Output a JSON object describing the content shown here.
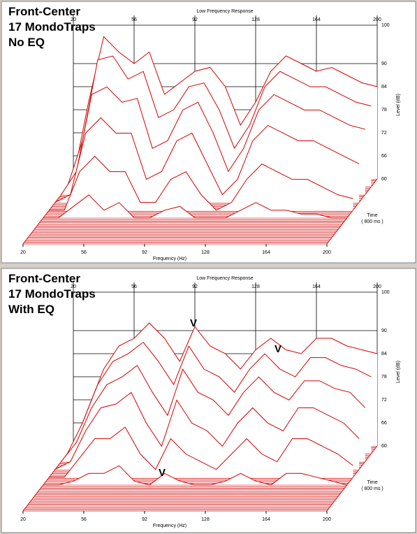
{
  "chart_data": [
    {
      "type": "waterfall",
      "title": [
        "Front-Center",
        "17 MondoTraps",
        "No EQ"
      ],
      "top_title": "Low Frequency Response",
      "xlabel": "Frequency (Hz)",
      "ylabel": "Level (dB)",
      "zlabel": [
        "Time",
        "( 800 ms )"
      ],
      "color": "#d40000",
      "x": [
        20,
        29,
        38,
        47,
        56,
        65,
        74,
        83,
        92,
        101,
        110,
        119,
        128,
        137,
        146,
        155,
        164,
        173,
        182,
        191,
        200
      ],
      "xlim": [
        20,
        200
      ],
      "xticks": [
        20,
        56,
        92,
        128,
        164,
        200
      ],
      "ylim": [
        60,
        100
      ],
      "yticks": [
        100,
        90,
        84,
        78,
        72,
        66,
        60
      ],
      "series": [
        {
          "values": [
            60,
            80,
            97,
            93,
            90,
            93,
            82,
            85,
            88,
            89,
            84,
            74,
            80,
            88,
            92,
            90,
            88,
            89,
            87,
            85,
            84
          ]
        },
        {
          "values": [
            60,
            72,
            93,
            94,
            88,
            90,
            78,
            80,
            86,
            87,
            80,
            70,
            76,
            86,
            90,
            88,
            86,
            86,
            84,
            82,
            81
          ]
        },
        {
          "values": [
            60,
            66,
            86,
            88,
            84,
            85,
            72,
            74,
            82,
            84,
            76,
            66,
            72,
            82,
            86,
            84,
            82,
            82,
            80,
            78,
            77
          ]
        },
        {
          "values": [
            60,
            62,
            78,
            82,
            78,
            78,
            66,
            68,
            76,
            78,
            70,
            62,
            66,
            76,
            80,
            78,
            76,
            76,
            74,
            72,
            70
          ]
        },
        {
          "values": [
            60,
            60,
            70,
            74,
            70,
            70,
            62,
            62,
            68,
            70,
            64,
            60,
            62,
            68,
            72,
            70,
            68,
            68,
            66,
            64,
            63
          ]
        },
        {
          "values": [
            60,
            60,
            63,
            66,
            62,
            64,
            60,
            60,
            62,
            63,
            60,
            60,
            60,
            62,
            64,
            62,
            62,
            61,
            61,
            60,
            60
          ]
        }
      ]
    },
    {
      "type": "waterfall",
      "title": [
        "Front-Center",
        "17 MondoTraps",
        "With EQ"
      ],
      "top_title": "Low Frequency Response",
      "xlabel": "Frequency (Hz)",
      "ylabel": "Level (dB)",
      "zlabel": [
        "Time",
        "( 800 ms )"
      ],
      "color": "#d40000",
      "annotations": [
        "V",
        "V",
        "V"
      ],
      "x": [
        20,
        29,
        38,
        47,
        56,
        65,
        74,
        83,
        92,
        101,
        110,
        119,
        128,
        137,
        146,
        155,
        164,
        173,
        182,
        191,
        200
      ],
      "xlim": [
        20,
        200
      ],
      "xticks": [
        20,
        56,
        92,
        128,
        164,
        200
      ],
      "ylim": [
        60,
        100
      ],
      "yticks": [
        100,
        90,
        84,
        78,
        72,
        66,
        60
      ],
      "series": [
        {
          "values": [
            60,
            70,
            80,
            86,
            88,
            92,
            88,
            82,
            91,
            86,
            84,
            80,
            85,
            88,
            85,
            84,
            88,
            88,
            86,
            85,
            84
          ]
        },
        {
          "values": [
            60,
            68,
            78,
            84,
            86,
            89,
            84,
            78,
            88,
            82,
            80,
            76,
            82,
            86,
            82,
            80,
            85,
            85,
            83,
            82,
            80
          ]
        },
        {
          "values": [
            60,
            65,
            74,
            80,
            82,
            85,
            78,
            72,
            84,
            78,
            76,
            72,
            78,
            82,
            78,
            76,
            81,
            81,
            79,
            78,
            74
          ]
        },
        {
          "values": [
            60,
            62,
            70,
            76,
            77,
            80,
            72,
            66,
            78,
            72,
            70,
            66,
            72,
            76,
            72,
            70,
            76,
            76,
            74,
            72,
            68
          ]
        },
        {
          "values": [
            60,
            60,
            65,
            70,
            70,
            73,
            66,
            62,
            70,
            66,
            64,
            62,
            66,
            70,
            66,
            64,
            70,
            70,
            68,
            66,
            63
          ]
        },
        {
          "values": [
            60,
            60,
            61,
            63,
            63,
            65,
            61,
            60,
            63,
            61,
            60,
            60,
            61,
            63,
            61,
            60,
            63,
            63,
            62,
            61,
            60
          ]
        }
      ]
    }
  ]
}
